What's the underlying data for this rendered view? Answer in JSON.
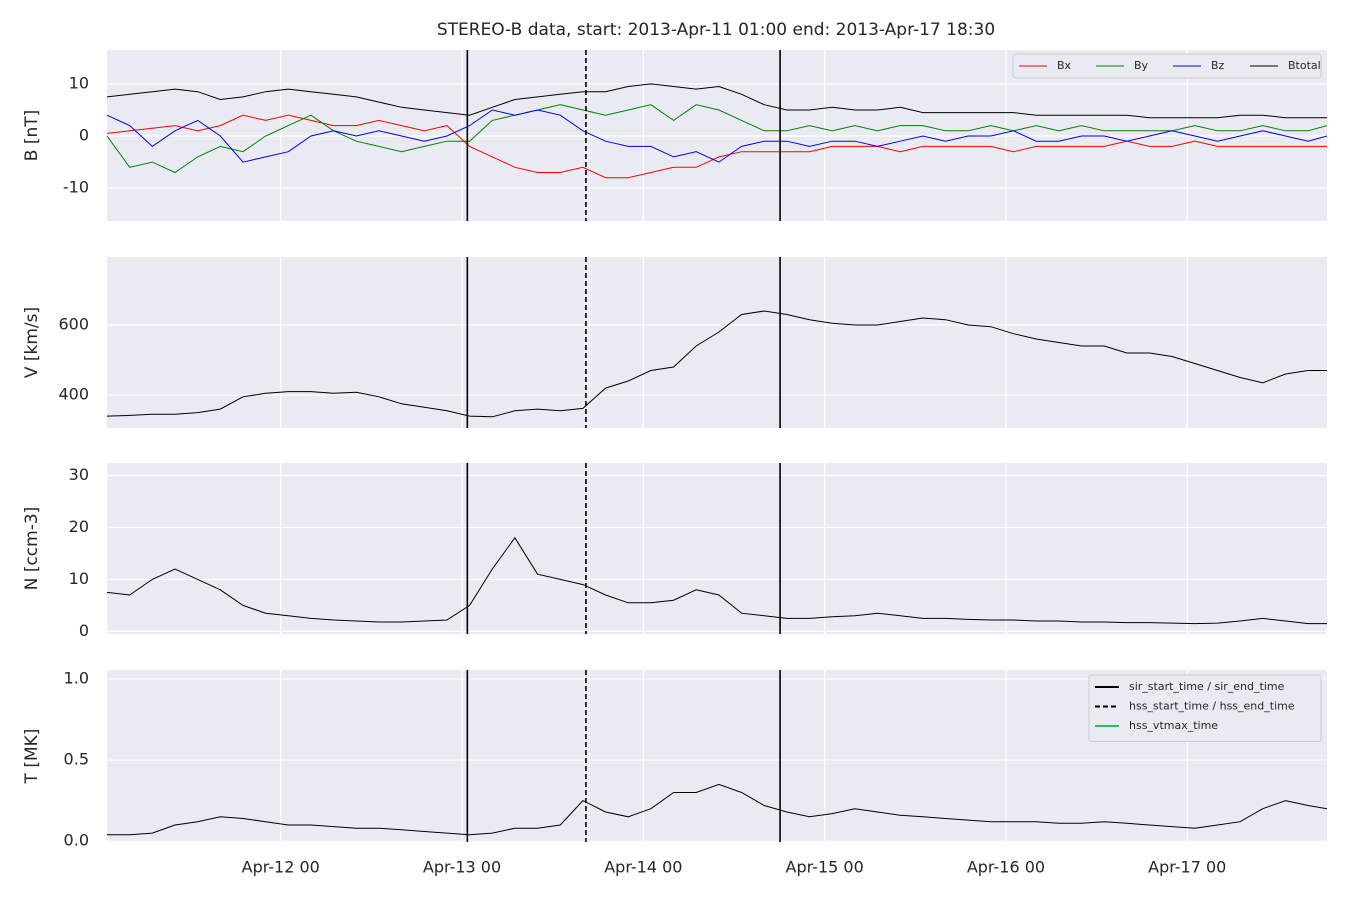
{
  "title": "STEREO-B data, start: 2013-Apr-11 01:00  end: 2013-Apr-17 18:30",
  "events": [
    {
      "name": "sir_start_time / sir_end_time",
      "color": "#000000",
      "style": "solid",
      "values": [
        47.7,
        89.1
      ]
    },
    {
      "name": "hss_start_time / hss_end_time",
      "color": "#000000",
      "style": "dashed",
      "values": [
        63.4
      ]
    },
    {
      "name": "hss_vtmax_time",
      "color": "#2ebd59",
      "style": "solid"
    }
  ],
  "chart_data": [
    {
      "type": "line",
      "ylabel": "B [nT]",
      "xlim": [
        0,
        161.5
      ],
      "xticks": [
        23,
        47,
        71,
        95,
        119,
        143
      ],
      "ylim": [
        -16.3,
        16.5
      ],
      "yticks": [
        -10,
        0,
        10
      ],
      "grid": true,
      "legend": "upper right",
      "x": [
        0,
        3,
        6,
        9,
        12,
        15,
        18,
        21,
        24,
        27,
        30,
        33,
        36,
        39,
        42,
        45,
        48,
        51,
        54,
        57,
        60,
        63,
        66,
        69,
        72,
        75,
        78,
        81,
        84,
        87,
        90,
        93,
        96,
        99,
        102,
        105,
        108,
        111,
        114,
        117,
        120,
        123,
        126,
        129,
        132,
        135,
        138,
        141,
        144,
        147,
        150,
        153,
        156,
        159,
        161.5
      ],
      "series": [
        {
          "name": "Bx",
          "color": "#ff0000",
          "values": [
            0.5,
            1,
            1.5,
            2,
            1,
            2,
            4,
            3,
            4,
            3,
            2,
            2,
            3,
            2,
            1,
            2,
            -2,
            -4,
            -6,
            -7,
            -7,
            -6,
            -8,
            -8,
            -7,
            -6,
            -6,
            -4,
            -3,
            -3,
            -3,
            -3,
            -2,
            -2,
            -2,
            -3,
            -2,
            -2,
            -2,
            -2,
            -3,
            -2,
            -2,
            -2,
            -2,
            -1,
            -2,
            -2,
            -1,
            -2,
            -2,
            -2,
            -2,
            -2,
            -2
          ]
        },
        {
          "name": "By",
          "color": "#008000",
          "values": [
            0,
            -6,
            -5,
            -7,
            -4,
            -2,
            -3,
            0,
            2,
            4,
            1,
            -1,
            -2,
            -3,
            -2,
            -1,
            -1,
            3,
            4,
            5,
            6,
            5,
            4,
            5,
            6,
            3,
            6,
            5,
            3,
            1,
            1,
            2,
            1,
            2,
            1,
            2,
            2,
            1,
            1,
            2,
            1,
            2,
            1,
            2,
            1,
            1,
            1,
            1,
            2,
            1,
            1,
            2,
            1,
            1,
            2
          ]
        },
        {
          "name": "Bz",
          "color": "#0000ff",
          "values": [
            4,
            2,
            -2,
            1,
            3,
            0,
            -5,
            -4,
            -3,
            0,
            1,
            0,
            1,
            0,
            -1,
            0,
            2,
            5,
            4,
            5,
            4,
            1,
            -1,
            -2,
            -2,
            -4,
            -3,
            -5,
            -2,
            -1,
            -1,
            -2,
            -1,
            -1,
            -2,
            -1,
            0,
            -1,
            0,
            0,
            1,
            -1,
            -1,
            0,
            0,
            -1,
            0,
            1,
            0,
            -1,
            0,
            1,
            0,
            -1,
            0
          ]
        },
        {
          "name": "Btotal",
          "color": "#000000",
          "values": [
            7.5,
            8,
            8.5,
            9,
            8.5,
            7,
            7.5,
            8.5,
            9,
            8.5,
            8,
            7.5,
            6.5,
            5.5,
            5,
            4.5,
            4,
            5.5,
            7,
            7.5,
            8,
            8.5,
            8.5,
            9.5,
            10,
            9.5,
            9,
            9.5,
            8,
            6,
            5,
            5,
            5.5,
            5,
            5,
            5.5,
            4.5,
            4.5,
            4.5,
            4.5,
            4.5,
            4,
            4,
            4,
            4,
            4,
            3.5,
            3.5,
            3.5,
            3.5,
            4,
            4,
            3.5,
            3.5,
            3.5
          ]
        }
      ]
    },
    {
      "type": "line",
      "ylabel": "V [km/s]",
      "xlim": [
        0,
        161.5
      ],
      "xticks": [
        23,
        47,
        71,
        95,
        119,
        143
      ],
      "ylim": [
        306,
        794
      ],
      "yticks": [
        400,
        600
      ],
      "grid": true,
      "x": [
        0,
        3,
        6,
        9,
        12,
        15,
        18,
        21,
        24,
        27,
        30,
        33,
        36,
        39,
        42,
        45,
        48,
        51,
        54,
        57,
        60,
        63,
        66,
        69,
        72,
        75,
        78,
        81,
        84,
        87,
        90,
        93,
        96,
        99,
        102,
        105,
        108,
        111,
        114,
        117,
        120,
        123,
        126,
        129,
        132,
        135,
        138,
        141,
        144,
        147,
        150,
        153,
        156,
        159,
        161.5
      ],
      "series": [
        {
          "color": "#000000",
          "values": [
            340,
            342,
            345,
            345,
            350,
            360,
            395,
            405,
            410,
            410,
            405,
            408,
            395,
            375,
            365,
            355,
            340,
            338,
            355,
            360,
            355,
            362,
            420,
            440,
            470,
            480,
            540,
            580,
            630,
            640,
            630,
            615,
            605,
            600,
            600,
            610,
            620,
            615,
            600,
            595,
            575,
            560,
            550,
            540,
            540,
            520,
            520,
            510,
            490,
            470,
            450,
            435,
            460,
            470,
            470
          ]
        }
      ]
    },
    {
      "type": "line",
      "ylabel": "N [ccm-3]",
      "xlim": [
        0,
        161.5
      ],
      "xticks": [
        23,
        47,
        71,
        95,
        119,
        143
      ],
      "ylim": [
        -0.5,
        32.4
      ],
      "yticks": [
        0,
        10,
        20,
        30
      ],
      "grid": true,
      "x": [
        0,
        3,
        6,
        9,
        12,
        15,
        18,
        21,
        24,
        27,
        30,
        33,
        36,
        39,
        42,
        45,
        48,
        51,
        54,
        57,
        60,
        63,
        66,
        69,
        72,
        75,
        78,
        81,
        84,
        87,
        90,
        93,
        96,
        99,
        102,
        105,
        108,
        111,
        114,
        117,
        120,
        123,
        126,
        129,
        132,
        135,
        138,
        141,
        144,
        147,
        150,
        153,
        156,
        159,
        161.5
      ],
      "series": [
        {
          "color": "#000000",
          "values": [
            7.5,
            7,
            10,
            12,
            10,
            8,
            5,
            3.5,
            3,
            2.5,
            2.2,
            2,
            1.8,
            1.8,
            2,
            2.2,
            5,
            12,
            18,
            11,
            10,
            9,
            7,
            5.5,
            5.5,
            6,
            8,
            7,
            3.5,
            3,
            2.5,
            2.5,
            2.8,
            3,
            3.5,
            3,
            2.5,
            2.5,
            2.3,
            2.2,
            2.2,
            2,
            2,
            1.8,
            1.8,
            1.7,
            1.7,
            1.6,
            1.5,
            1.6,
            2,
            2.5,
            2,
            1.5,
            1.5
          ]
        }
      ]
    },
    {
      "type": "line",
      "ylabel": "T [MK]",
      "xlim": [
        0,
        161.5
      ],
      "xticks": [
        {
          "value": 23,
          "label": "Apr-12 00"
        },
        {
          "value": 47,
          "label": "Apr-13 00"
        },
        {
          "value": 71,
          "label": "Apr-14 00"
        },
        {
          "value": 95,
          "label": "Apr-15 00"
        },
        {
          "value": 119,
          "label": "Apr-16 00"
        },
        {
          "value": 143,
          "label": "Apr-17 00"
        }
      ],
      "ylim": [
        -0.005,
        1.055
      ],
      "yticks": [
        {
          "value": 0,
          "label": "0.0"
        },
        {
          "value": 0.5,
          "label": "0.5"
        },
        {
          "value": 1,
          "label": "1.0"
        }
      ],
      "grid": true,
      "event_legend": "upper right",
      "x": [
        0,
        3,
        6,
        9,
        12,
        15,
        18,
        21,
        24,
        27,
        30,
        33,
        36,
        39,
        42,
        45,
        48,
        51,
        54,
        57,
        60,
        63,
        66,
        69,
        72,
        75,
        78,
        81,
        84,
        87,
        90,
        93,
        96,
        99,
        102,
        105,
        108,
        111,
        114,
        117,
        120,
        123,
        126,
        129,
        132,
        135,
        138,
        141,
        144,
        147,
        150,
        153,
        156,
        159,
        161.5
      ],
      "series": [
        {
          "color": "#000000",
          "values": [
            0.04,
            0.04,
            0.05,
            0.1,
            0.12,
            0.15,
            0.14,
            0.12,
            0.1,
            0.1,
            0.09,
            0.08,
            0.08,
            0.07,
            0.06,
            0.05,
            0.04,
            0.05,
            0.08,
            0.08,
            0.1,
            0.25,
            0.18,
            0.15,
            0.2,
            0.3,
            0.3,
            0.35,
            0.3,
            0.22,
            0.18,
            0.15,
            0.17,
            0.2,
            0.18,
            0.16,
            0.15,
            0.14,
            0.13,
            0.12,
            0.12,
            0.12,
            0.11,
            0.11,
            0.12,
            0.11,
            0.1,
            0.09,
            0.08,
            0.1,
            0.12,
            0.2,
            0.25,
            0.22,
            0.2
          ]
        }
      ]
    }
  ]
}
